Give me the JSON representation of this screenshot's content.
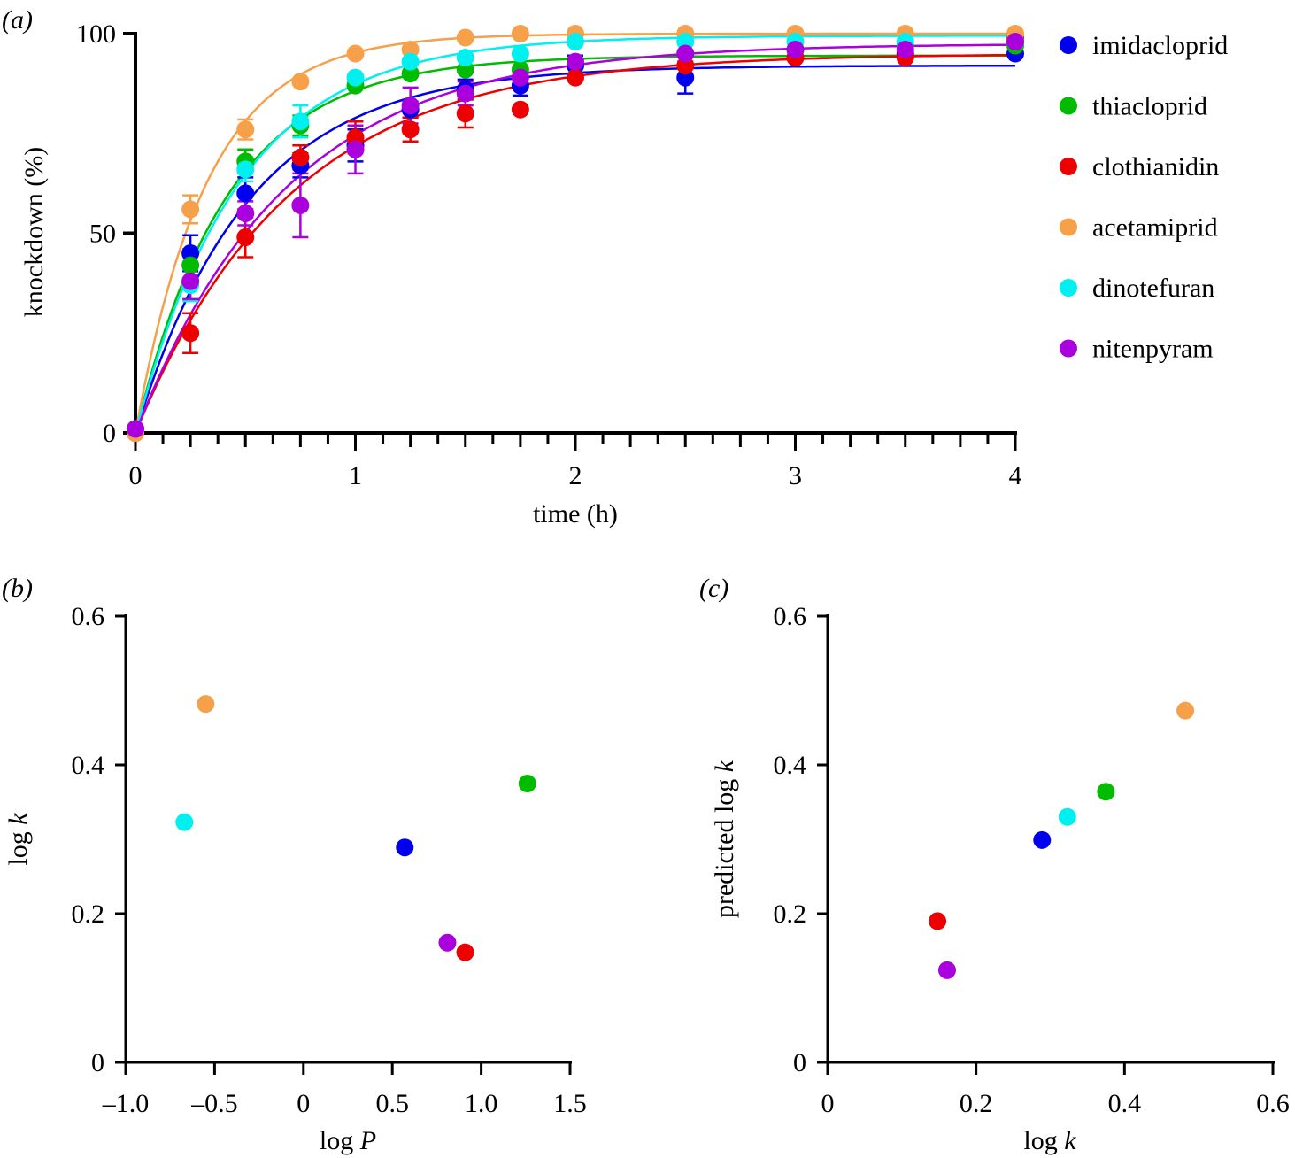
{
  "chart_data": [
    {
      "id": "a",
      "panel_label": "(a)",
      "type": "scatter",
      "xlabel": "time (h)",
      "ylabel": "knockdown (%)",
      "xlim": [
        0,
        4
      ],
      "ylim": [
        0,
        100
      ],
      "xticks": [
        0,
        1,
        2,
        3,
        4
      ],
      "xtick_labels": [
        "0",
        "1",
        "2",
        "3",
        "4"
      ],
      "yticks": [
        0,
        50,
        100
      ],
      "ytick_labels": [
        "0",
        "50",
        "100"
      ],
      "legend_position": "right",
      "fit": "exponential",
      "series": [
        {
          "name": "imidacloprid",
          "color": "#0000ee",
          "fit_k": 1.95,
          "fit_max": 92,
          "points": [
            [
              0,
              1,
              0
            ],
            [
              0.25,
              45,
              4.5
            ],
            [
              0.5,
              60,
              4
            ],
            [
              0.75,
              67,
              3
            ],
            [
              1,
              72,
              4
            ],
            [
              1.25,
              81,
              2
            ],
            [
              1.5,
              86,
              2.5
            ],
            [
              1.75,
              87,
              2.5
            ],
            [
              2,
              92,
              2.5
            ],
            [
              2.5,
              89,
              4
            ],
            [
              3,
              94,
              0
            ],
            [
              3.5,
              95,
              0
            ],
            [
              4,
              95,
              0
            ]
          ]
        },
        {
          "name": "thiacloprid",
          "color": "#00bb00",
          "fit_k": 2.37,
          "fit_max": 94.5,
          "points": [
            [
              0,
              1,
              0
            ],
            [
              0.25,
              42,
              4
            ],
            [
              0.5,
              68,
              3
            ],
            [
              0.75,
              77,
              2.5
            ],
            [
              1,
              87,
              0
            ],
            [
              1.25,
              90,
              0
            ],
            [
              1.5,
              91,
              0
            ],
            [
              1.75,
              91,
              0
            ],
            [
              2.5,
              95,
              0
            ],
            [
              3,
              96,
              0
            ],
            [
              3.5,
              97,
              0
            ],
            [
              4,
              97,
              0
            ]
          ]
        },
        {
          "name": "clothianidin",
          "color": "#ee0000",
          "fit_k": 1.41,
          "fit_max": 95,
          "points": [
            [
              0,
              0,
              0
            ],
            [
              0.25,
              25,
              5
            ],
            [
              0.5,
              49,
              5
            ],
            [
              0.75,
              69,
              3
            ],
            [
              1,
              74,
              4
            ],
            [
              1.25,
              76,
              3
            ],
            [
              1.5,
              80,
              3.5
            ],
            [
              1.75,
              81,
              0
            ],
            [
              2,
              89,
              0
            ],
            [
              2.5,
              92,
              0
            ],
            [
              3,
              94,
              0
            ],
            [
              3.5,
              94,
              0
            ],
            [
              4,
              99,
              0
            ]
          ]
        },
        {
          "name": "acetamiprid",
          "color": "#f7a04a",
          "fit_k": 3.04,
          "fit_max": 100,
          "points": [
            [
              0,
              0,
              0
            ],
            [
              0.25,
              56,
              3.5
            ],
            [
              0.5,
              76,
              2.5
            ],
            [
              0.75,
              88,
              0
            ],
            [
              1,
              95,
              0
            ],
            [
              1.25,
              96,
              0
            ],
            [
              1.5,
              99,
              0
            ],
            [
              1.75,
              100,
              0
            ],
            [
              2,
              100,
              0
            ],
            [
              2.5,
              100,
              0
            ],
            [
              3,
              100,
              0
            ],
            [
              3.5,
              100,
              0
            ],
            [
              4,
              100,
              0
            ]
          ]
        },
        {
          "name": "dinotefuran",
          "color": "#00f0f0",
          "fit_k": 2.1,
          "fit_max": 99.5,
          "points": [
            [
              0,
              1,
              0
            ],
            [
              0.25,
              37,
              4
            ],
            [
              0.5,
              66,
              3
            ],
            [
              0.75,
              78,
              4
            ],
            [
              1,
              89,
              0
            ],
            [
              1.25,
              93,
              0
            ],
            [
              1.5,
              94,
              0
            ],
            [
              1.75,
              95,
              0
            ],
            [
              2,
              98,
              0
            ],
            [
              2.5,
              98,
              0
            ],
            [
              3,
              98,
              0
            ],
            [
              3.5,
              98,
              0
            ],
            [
              4,
              98,
              0
            ]
          ]
        },
        {
          "name": "nitenpyram",
          "color": "#aa00dd",
          "fit_k": 1.45,
          "fit_max": 97.5,
          "points": [
            [
              0,
              1,
              0
            ],
            [
              0.25,
              38,
              4.5
            ],
            [
              0.5,
              55,
              3
            ],
            [
              0.75,
              57,
              8
            ],
            [
              1,
              71,
              6
            ],
            [
              1.25,
              82,
              4.5
            ],
            [
              1.5,
              85,
              3
            ],
            [
              1.75,
              89,
              0
            ],
            [
              2,
              93,
              0
            ],
            [
              2.5,
              95,
              0
            ],
            [
              3,
              96,
              0
            ],
            [
              3.5,
              96,
              0
            ],
            [
              4,
              98,
              0
            ]
          ]
        }
      ]
    },
    {
      "id": "b",
      "panel_label": "(b)",
      "type": "scatter",
      "xlabel": "log P",
      "ylabel": "log k",
      "xlim": [
        -1.0,
        1.5
      ],
      "ylim": [
        0,
        0.6
      ],
      "xticks": [
        -1.0,
        -0.5,
        0,
        0.5,
        1.0,
        1.5
      ],
      "xtick_labels": [
        "–1.0",
        "–0.5",
        "0",
        "0.5",
        "1.0",
        "1.5"
      ],
      "yticks": [
        0,
        0.2,
        0.4,
        0.6
      ],
      "ytick_labels": [
        "0",
        "0.2",
        "0.4",
        "0.6"
      ],
      "points": [
        {
          "series": "acetamiprid",
          "color": "#f7a04a",
          "x": -0.55,
          "y": 0.482
        },
        {
          "series": "dinotefuran",
          "color": "#00f0f0",
          "x": -0.67,
          "y": 0.323
        },
        {
          "series": "imidacloprid",
          "color": "#0000ee",
          "x": 0.57,
          "y": 0.289
        },
        {
          "series": "thiacloprid",
          "color": "#00bb00",
          "x": 1.26,
          "y": 0.375
        },
        {
          "series": "nitenpyram",
          "color": "#aa00dd",
          "x": 0.81,
          "y": 0.161
        },
        {
          "series": "clothianidin",
          "color": "#ee0000",
          "x": 0.91,
          "y": 0.148
        }
      ]
    },
    {
      "id": "c",
      "panel_label": "(c)",
      "type": "scatter",
      "xlabel": "log k",
      "ylabel": "predicted log k",
      "xlim": [
        0,
        0.6
      ],
      "ylim": [
        0,
        0.6
      ],
      "xticks": [
        0,
        0.2,
        0.4,
        0.6
      ],
      "xtick_labels": [
        "0",
        "0.2",
        "0.4",
        "0.6"
      ],
      "yticks": [
        0,
        0.2,
        0.4,
        0.6
      ],
      "ytick_labels": [
        "0",
        "0.2",
        "0.4",
        "0.6"
      ],
      "points": [
        {
          "series": "acetamiprid",
          "color": "#f7a04a",
          "x": 0.482,
          "y": 0.473
        },
        {
          "series": "thiacloprid",
          "color": "#00bb00",
          "x": 0.375,
          "y": 0.364
        },
        {
          "series": "dinotefuran",
          "color": "#00f0f0",
          "x": 0.323,
          "y": 0.33
        },
        {
          "series": "imidacloprid",
          "color": "#0000ee",
          "x": 0.289,
          "y": 0.299
        },
        {
          "series": "clothianidin",
          "color": "#ee0000",
          "x": 0.148,
          "y": 0.19
        },
        {
          "series": "nitenpyram",
          "color": "#aa00dd",
          "x": 0.161,
          "y": 0.124
        }
      ]
    }
  ]
}
